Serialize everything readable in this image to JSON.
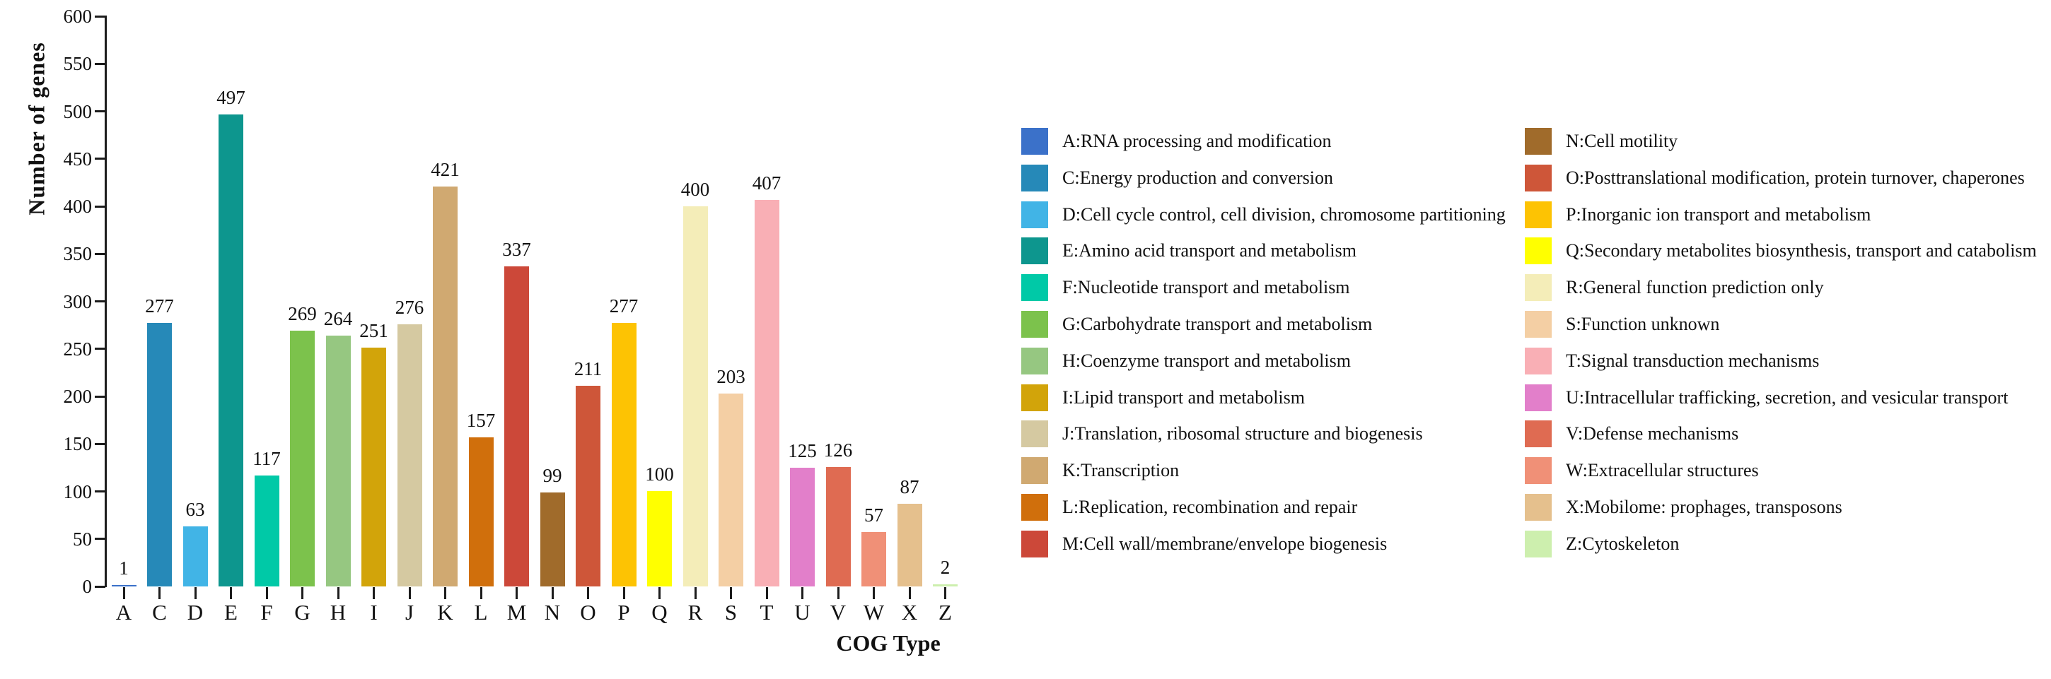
{
  "chart_data": {
    "type": "bar",
    "title": "",
    "ylabel": "Number of genes",
    "xlabel": "COG Type",
    "ylim": [
      0,
      600
    ],
    "ytick_labels": [
      "0",
      "50",
      "100",
      "150",
      "200",
      "250",
      "300",
      "350",
      "400",
      "450",
      "500",
      "550",
      "600"
    ],
    "grid": false,
    "bar_value_labels": true,
    "legend_position": "right",
    "legend_columns": 2,
    "categories": [
      "A",
      "C",
      "D",
      "E",
      "F",
      "G",
      "H",
      "I",
      "J",
      "K",
      "L",
      "M",
      "N",
      "O",
      "P",
      "Q",
      "R",
      "S",
      "T",
      "U",
      "V",
      "W",
      "X",
      "Z"
    ],
    "values": [
      1,
      277,
      63,
      497,
      117,
      269,
      264,
      251,
      276,
      421,
      157,
      337,
      99,
      211,
      277,
      100,
      400,
      203,
      407,
      125,
      126,
      57,
      87,
      2
    ],
    "colors": [
      "#3B71C9",
      "#2689B8",
      "#41B4E6",
      "#0D968E",
      "#00C9A7",
      "#7CC24C",
      "#96C781",
      "#D2A40A",
      "#D5C9A1",
      "#D0A971",
      "#D06F0C",
      "#CC4839",
      "#A06B2B",
      "#CE5639",
      "#FDC303",
      "#FFFF00",
      "#F4EDB8",
      "#F4CFA4",
      "#F9AFB5",
      "#E27FCA",
      "#DF6B52",
      "#F09077",
      "#E5C08D",
      "#CDEFAE"
    ],
    "legend_entries": [
      "A:RNA processing and modification",
      "C:Energy production and conversion",
      "D:Cell cycle control, cell division, chromosome partitioning",
      "E:Amino acid transport and metabolism",
      "F:Nucleotide transport and metabolism",
      "G:Carbohydrate transport and metabolism",
      "H:Coenzyme transport and metabolism",
      "I:Lipid transport and metabolism",
      "J:Translation, ribosomal structure and biogenesis",
      "K:Transcription",
      "L:Replication, recombination and repair",
      "M:Cell wall/membrane/envelope biogenesis",
      "N:Cell motility",
      "O:Posttranslational modification, protein turnover, chaperones",
      "P:Inorganic ion transport and metabolism",
      "Q:Secondary metabolites biosynthesis, transport and catabolism",
      "R:General function prediction only",
      "S:Function unknown",
      "T:Signal transduction mechanisms",
      "U:Intracellular trafficking, secretion, and vesicular transport",
      "V:Defense mechanisms",
      "W:Extracellular structures",
      "X:Mobilome: prophages, transposons",
      "Z:Cytoskeleton"
    ]
  }
}
